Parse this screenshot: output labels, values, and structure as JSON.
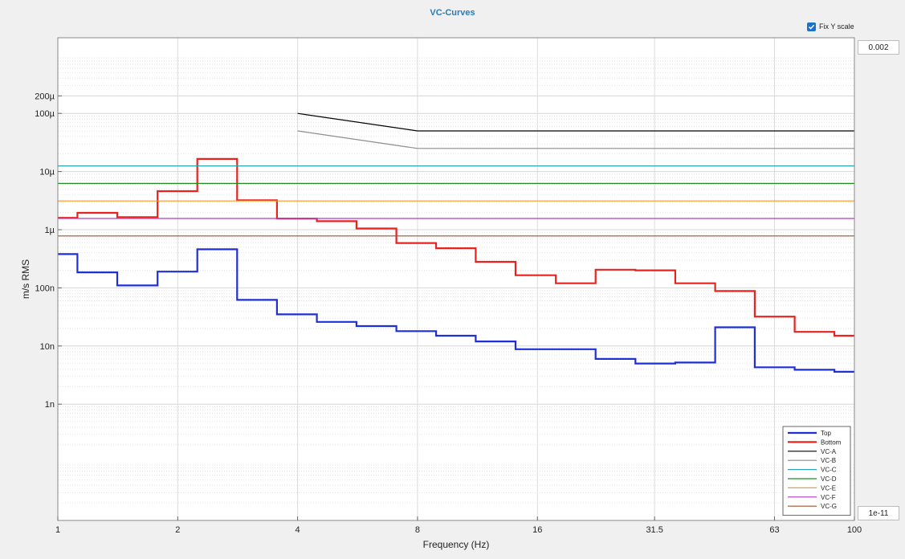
{
  "window": {
    "title": "VC-Curves"
  },
  "controls": {
    "fix_y_label": "Fix Y scale",
    "fix_y_checked": true,
    "y_max_value": "0.002",
    "y_min_value": "1e-11"
  },
  "chart_data": {
    "type": "line",
    "title": "VC-Curves",
    "xlabel": "Frequency (Hz)",
    "ylabel": "m/s RMS",
    "x_scale": "log2",
    "y_scale": "log10",
    "xlim": [
      1,
      100
    ],
    "ylim": [
      1e-11,
      0.002
    ],
    "x_ticks": [
      1,
      2,
      4,
      8,
      16,
      31.5,
      63,
      100
    ],
    "x_tick_labels": [
      "1",
      "2",
      "4",
      "8",
      "16",
      "31.5",
      "63",
      "100"
    ],
    "y_ticks": [
      1e-09,
      1e-08,
      1e-07,
      1e-06,
      1e-05,
      0.0001,
      0.0002
    ],
    "y_tick_labels": [
      "1n",
      "10n",
      "100n",
      "1µ",
      "10µ",
      "100µ",
      "200µ"
    ],
    "grid": true,
    "legend_position": "bottom-right",
    "series": [
      {
        "name": "Top",
        "color": "#1f2fd6",
        "style": "step",
        "edges": [
          1,
          1.12,
          1.41,
          1.78,
          2.24,
          2.82,
          3.55,
          4.47,
          5.62,
          7.08,
          8.91,
          11.2,
          14.1,
          17.8,
          22.4,
          28.2,
          35.5,
          44.7,
          56.2,
          70.8,
          89.1,
          100
        ],
        "values": [
          3.8e-07,
          1.85e-07,
          1.1e-07,
          1.9e-07,
          4.6e-07,
          6.2e-08,
          3.5e-08,
          2.6e-08,
          2.2e-08,
          1.8e-08,
          1.5e-08,
          1.2e-08,
          8.8e-09,
          8.8e-09,
          6e-09,
          5e-09,
          5.2e-09,
          2.1e-08,
          4.3e-09,
          3.9e-09,
          3.6e-09
        ]
      },
      {
        "name": "Bottom",
        "color": "#e8231e",
        "style": "step",
        "edges": [
          1,
          1.12,
          1.41,
          1.78,
          2.24,
          2.82,
          3.55,
          4.47,
          5.62,
          7.08,
          8.91,
          11.2,
          14.1,
          17.8,
          22.4,
          28.2,
          35.5,
          44.7,
          56.2,
          70.8,
          89.1,
          100
        ],
        "values": [
          1.6e-06,
          1.95e-06,
          1.65e-06,
          4.6e-06,
          1.65e-05,
          3.2e-06,
          1.55e-06,
          1.4e-06,
          1.05e-06,
          5.9e-07,
          4.8e-07,
          2.8e-07,
          1.65e-07,
          1.2e-07,
          2.05e-07,
          2e-07,
          1.2e-07,
          8.8e-08,
          3.2e-08,
          1.75e-08,
          1.5e-08
        ]
      },
      {
        "name": "VC-A",
        "color": "#000000",
        "x": [
          4,
          8,
          100
        ],
        "y": [
          0.0001,
          5e-05,
          5e-05
        ]
      },
      {
        "name": "VC-B",
        "color": "#8c8c8c",
        "x": [
          4,
          8,
          100
        ],
        "y": [
          5e-05,
          2.5e-05,
          2.5e-05
        ]
      },
      {
        "name": "VC-C",
        "color": "#2aa3b3",
        "x": [
          1,
          100
        ],
        "y": [
          1.25e-05,
          1.25e-05
        ]
      },
      {
        "name": "VC-D",
        "color": "#1e8f1e",
        "x": [
          1,
          100
        ],
        "y": [
          6.25e-06,
          6.25e-06
        ]
      },
      {
        "name": "VC-E",
        "color": "#f59a2c",
        "x": [
          1,
          100
        ],
        "y": [
          3.12e-06,
          3.12e-06
        ]
      },
      {
        "name": "VC-F",
        "color": "#b33ac7",
        "x": [
          1,
          100
        ],
        "y": [
          1.56e-06,
          1.56e-06
        ]
      },
      {
        "name": "VC-G",
        "color": "#a0522d",
        "x": [
          1,
          100
        ],
        "y": [
          7.8e-07,
          7.8e-07
        ]
      }
    ]
  }
}
